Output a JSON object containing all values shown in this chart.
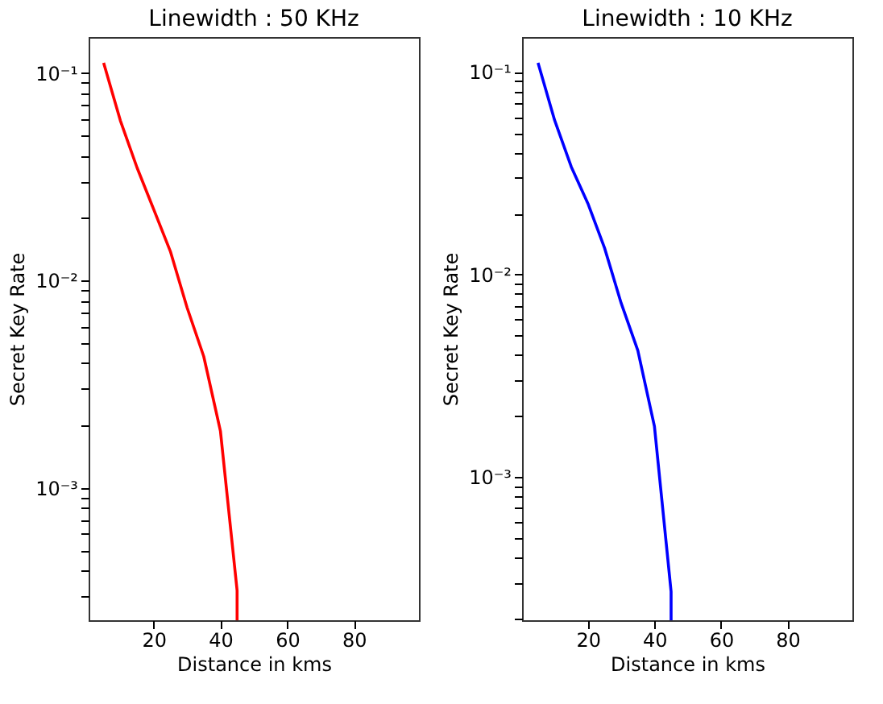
{
  "chart_data": [
    {
      "type": "line",
      "title": "Linewidth : 50 KHz",
      "xlabel": "Distance in kms",
      "ylabel": "Secret Key Rate",
      "log": true,
      "grid": false,
      "marker": "none",
      "line_style": "solid",
      "x": [
        5,
        10,
        15,
        20,
        25,
        30,
        35,
        40,
        45,
        45
      ],
      "series": [
        {
          "color": "#ff0000",
          "values": [
            0.112,
            0.059,
            0.035,
            0.022,
            0.0138,
            0.0074,
            0.0043,
            0.00188,
            0.00032,
            0.00023
          ]
        }
      ],
      "xlim": [
        0.5,
        99.5
      ],
      "xticks": [
        20,
        40,
        60,
        80
      ],
      "ylim": [
        0.00023,
        0.149
      ],
      "yticks": [
        {
          "value": 0.001,
          "label": "10⁻³"
        },
        {
          "value": 0.01,
          "label": "10⁻²"
        },
        {
          "value": 0.1,
          "label": "10⁻¹"
        },
        {
          "value": 0.0003,
          "label": null
        },
        {
          "value": 0.0004,
          "label": null
        },
        {
          "value": 0.0005,
          "label": null
        },
        {
          "value": 0.0006,
          "label": null
        },
        {
          "value": 0.0007,
          "label": null
        },
        {
          "value": 0.0008,
          "label": null
        },
        {
          "value": 0.0009,
          "label": null
        },
        {
          "value": 0.002,
          "label": null
        },
        {
          "value": 0.003,
          "label": null
        },
        {
          "value": 0.004,
          "label": null
        },
        {
          "value": 0.005,
          "label": null
        },
        {
          "value": 0.006,
          "label": null
        },
        {
          "value": 0.007,
          "label": null
        },
        {
          "value": 0.008,
          "label": null
        },
        {
          "value": 0.009,
          "label": null
        },
        {
          "value": 0.02,
          "label": null
        },
        {
          "value": 0.03,
          "label": null
        },
        {
          "value": 0.04,
          "label": null
        },
        {
          "value": 0.05,
          "label": null
        },
        {
          "value": 0.06,
          "label": null
        },
        {
          "value": 0.07,
          "label": null
        },
        {
          "value": 0.08,
          "label": null
        },
        {
          "value": 0.09,
          "label": null
        }
      ]
    },
    {
      "type": "line",
      "title": "Linewidth : 10 KHz",
      "xlabel": "Distance in kms",
      "ylabel": "Secret Key Rate",
      "log": true,
      "grid": false,
      "marker": "none",
      "line_style": "solid",
      "x": [
        5,
        10,
        15,
        20,
        25,
        30,
        35,
        40,
        45,
        45
      ],
      "series": [
        {
          "color": "#0000ff",
          "values": [
            0.111,
            0.0577,
            0.034,
            0.0224,
            0.0135,
            0.0072,
            0.0042,
            0.00177,
            0.00027,
            0.000195
          ]
        }
      ],
      "xlim": [
        0.2,
        99.5
      ],
      "xticks": [
        20,
        40,
        60,
        80
      ],
      "ylim": [
        0.000195,
        0.149
      ],
      "yticks": [
        {
          "value": 0.001,
          "label": "10⁻³"
        },
        {
          "value": 0.01,
          "label": "10⁻²"
        },
        {
          "value": 0.1,
          "label": "10⁻¹"
        },
        {
          "value": 0.0002,
          "label": null
        },
        {
          "value": 0.0003,
          "label": null
        },
        {
          "value": 0.0004,
          "label": null
        },
        {
          "value": 0.0005,
          "label": null
        },
        {
          "value": 0.0006,
          "label": null
        },
        {
          "value": 0.0007,
          "label": null
        },
        {
          "value": 0.0008,
          "label": null
        },
        {
          "value": 0.0009,
          "label": null
        },
        {
          "value": 0.002,
          "label": null
        },
        {
          "value": 0.003,
          "label": null
        },
        {
          "value": 0.004,
          "label": null
        },
        {
          "value": 0.005,
          "label": null
        },
        {
          "value": 0.006,
          "label": null
        },
        {
          "value": 0.007,
          "label": null
        },
        {
          "value": 0.008,
          "label": null
        },
        {
          "value": 0.009,
          "label": null
        },
        {
          "value": 0.02,
          "label": null
        },
        {
          "value": 0.03,
          "label": null
        },
        {
          "value": 0.04,
          "label": null
        },
        {
          "value": 0.05,
          "label": null
        },
        {
          "value": 0.06,
          "label": null
        },
        {
          "value": 0.07,
          "label": null
        },
        {
          "value": 0.08,
          "label": null
        },
        {
          "value": 0.09,
          "label": null
        }
      ]
    }
  ]
}
